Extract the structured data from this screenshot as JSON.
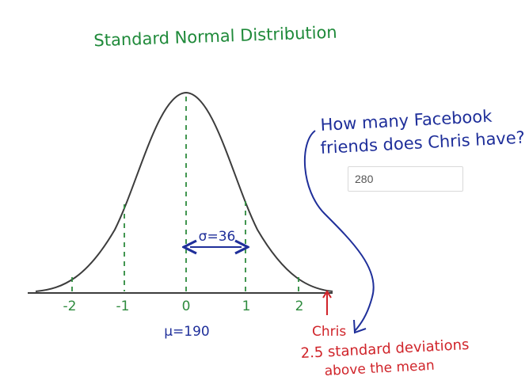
{
  "title": "Standard Normal Distribution",
  "question": {
    "line1": "How many Facebook",
    "line2": "friends does Chris have?"
  },
  "answer_input": {
    "value": "280"
  },
  "axis": {
    "ticks": [
      "-2",
      "-1",
      "0",
      "1",
      "2"
    ]
  },
  "sigma_label": "σ=36",
  "mu_label": "μ=190",
  "chris_annotation": {
    "name": "Chris",
    "line1": "2.5 standard deviations",
    "line2": "above the mean"
  },
  "colors": {
    "title": "#1f8a3a",
    "curve": "#3c3c3c",
    "guides": "#2e8b3e",
    "blue_ink": "#1f2f9a",
    "red_ink": "#d0242a"
  }
}
